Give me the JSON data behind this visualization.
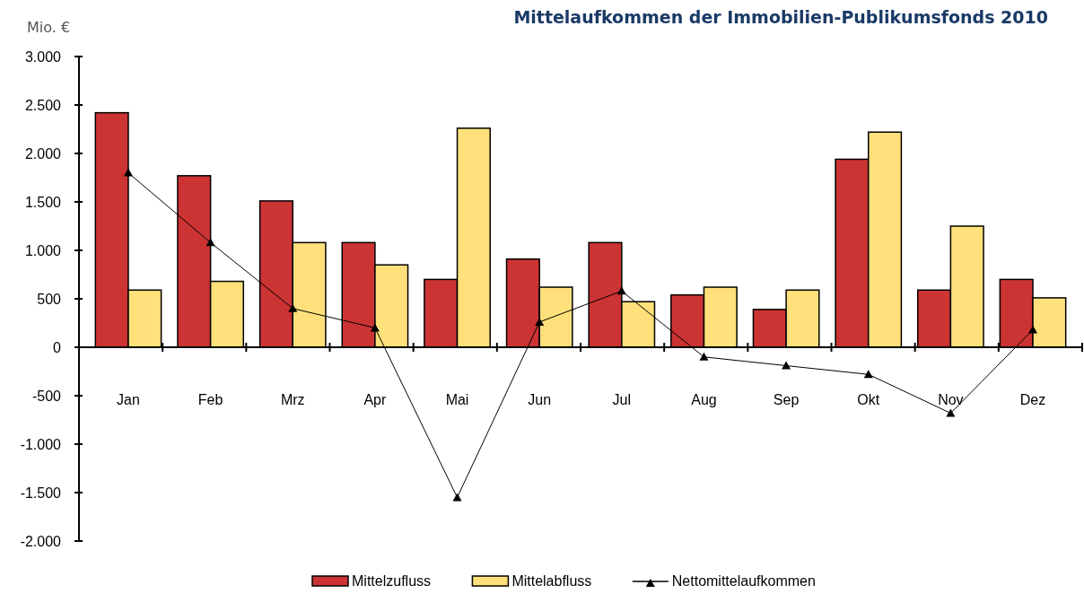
{
  "chart_data": {
    "type": "bar",
    "title": "Mittelaufkommen der Immobilien-Publikumsfonds 2010",
    "ylabel": "Mio. €",
    "categories": [
      "Jan",
      "Feb",
      "Mrz",
      "Apr",
      "Mai",
      "Jun",
      "Jul",
      "Aug",
      "Sep",
      "Okt",
      "Nov",
      "Dez"
    ],
    "series": [
      {
        "name": "Mittelzufluss",
        "color": "#cc3333",
        "values": [
          2420,
          1770,
          1510,
          1080,
          700,
          910,
          1080,
          540,
          390,
          1940,
          590,
          700
        ]
      },
      {
        "name": "Mittelabfluss",
        "color": "#ffe07a",
        "values": [
          590,
          680,
          1080,
          850,
          2260,
          620,
          470,
          620,
          590,
          2220,
          1250,
          510
        ]
      },
      {
        "name": "Nettomittelaufkommen",
        "type": "line",
        "color": "#000000",
        "marker": "triangle",
        "values": [
          1800,
          1080,
          400,
          200,
          -1550,
          260,
          580,
          -100,
          -190,
          -280,
          -680,
          180
        ]
      }
    ],
    "ylim": [
      -2000,
      3000
    ],
    "yticks": [
      {
        "value": -2000,
        "label": "-2.000"
      },
      {
        "value": -1500,
        "label": "-1.500"
      },
      {
        "value": -1000,
        "label": "-1.000"
      },
      {
        "value": -500,
        "label": "-500"
      },
      0,
      500,
      {
        "value": 1000,
        "label": "1.000"
      },
      {
        "value": 1500,
        "label": "1.500"
      },
      {
        "value": 2000,
        "label": "2.000"
      },
      {
        "value": 2500,
        "label": "2.500"
      },
      {
        "value": 3000,
        "label": "3.000"
      }
    ],
    "legend": "bottom"
  }
}
